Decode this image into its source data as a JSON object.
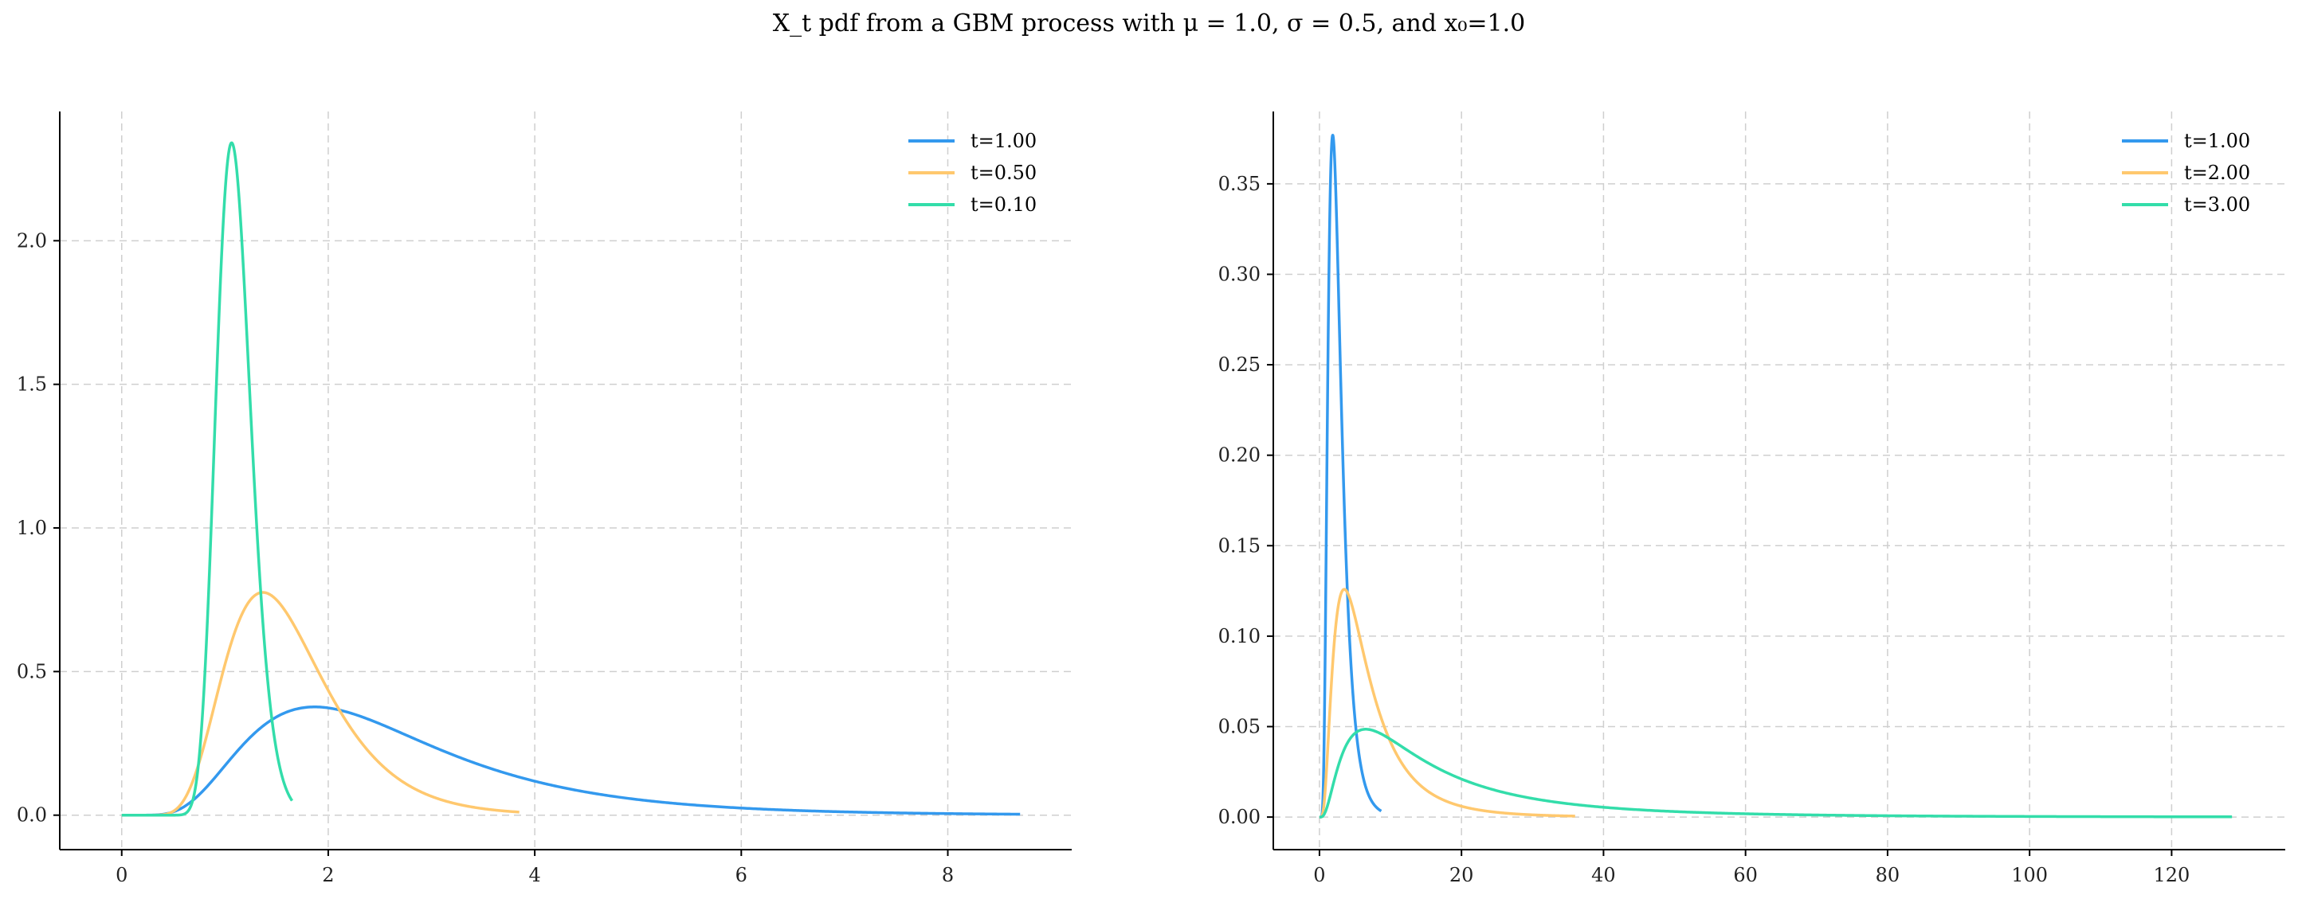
{
  "title": "X_t pdf from a GBM process with μ = 1.0, σ = 0.5, and x₀=1.0",
  "chart_data": [
    {
      "type": "line",
      "title": "",
      "xlabel": "",
      "ylabel": "",
      "xlim": [
        -0.6,
        9.2
      ],
      "ylim": [
        -0.12,
        2.45
      ],
      "xticks": [
        0,
        2,
        4,
        6,
        8
      ],
      "xtick_labels": [
        "0",
        "2",
        "4",
        "6",
        "8"
      ],
      "yticks": [
        0.0,
        0.5,
        1.0,
        1.5,
        2.0
      ],
      "ytick_labels": [
        "0.0",
        "0.5",
        "1.0",
        "1.5",
        "2.0"
      ],
      "grid": true,
      "legend_position": "top-right",
      "mu": 1.0,
      "sigma": 0.5,
      "x0": 1.0,
      "series": [
        {
          "name": "t=1.00",
          "t": 1.0,
          "x_range": [
            0,
            8.7
          ],
          "color": "#3399ee"
        },
        {
          "name": "t=0.50",
          "t": 0.5,
          "x_range": [
            0,
            3.85
          ],
          "color": "#ffc86e"
        },
        {
          "name": "t=0.10",
          "t": 0.1,
          "x_range": [
            0,
            1.65
          ],
          "color": "#33ddaa"
        }
      ]
    },
    {
      "type": "line",
      "title": "",
      "xlabel": "",
      "ylabel": "",
      "xlim": [
        -6.5,
        136
      ],
      "ylim": [
        -0.018,
        0.39
      ],
      "xticks": [
        0,
        20,
        40,
        60,
        80,
        100,
        120
      ],
      "xtick_labels": [
        "0",
        "20",
        "40",
        "60",
        "80",
        "100",
        "120"
      ],
      "yticks": [
        0.0,
        0.05,
        0.1,
        0.15,
        0.2,
        0.25,
        0.3,
        0.35
      ],
      "ytick_labels": [
        "0.00",
        "0.05",
        "0.10",
        "0.15",
        "0.20",
        "0.25",
        "0.30",
        "0.35"
      ],
      "grid": true,
      "legend_position": "top-right",
      "mu": 1.0,
      "sigma": 0.5,
      "x0": 1.0,
      "series": [
        {
          "name": "t=1.00",
          "t": 1.0,
          "x_range": [
            0,
            8.7
          ],
          "color": "#3399ee"
        },
        {
          "name": "t=2.00",
          "t": 2.0,
          "x_range": [
            0,
            36
          ],
          "color": "#ffc86e"
        },
        {
          "name": "t=3.00",
          "t": 3.0,
          "x_range": [
            0,
            128.5
          ],
          "color": "#33ddaa"
        }
      ]
    }
  ]
}
